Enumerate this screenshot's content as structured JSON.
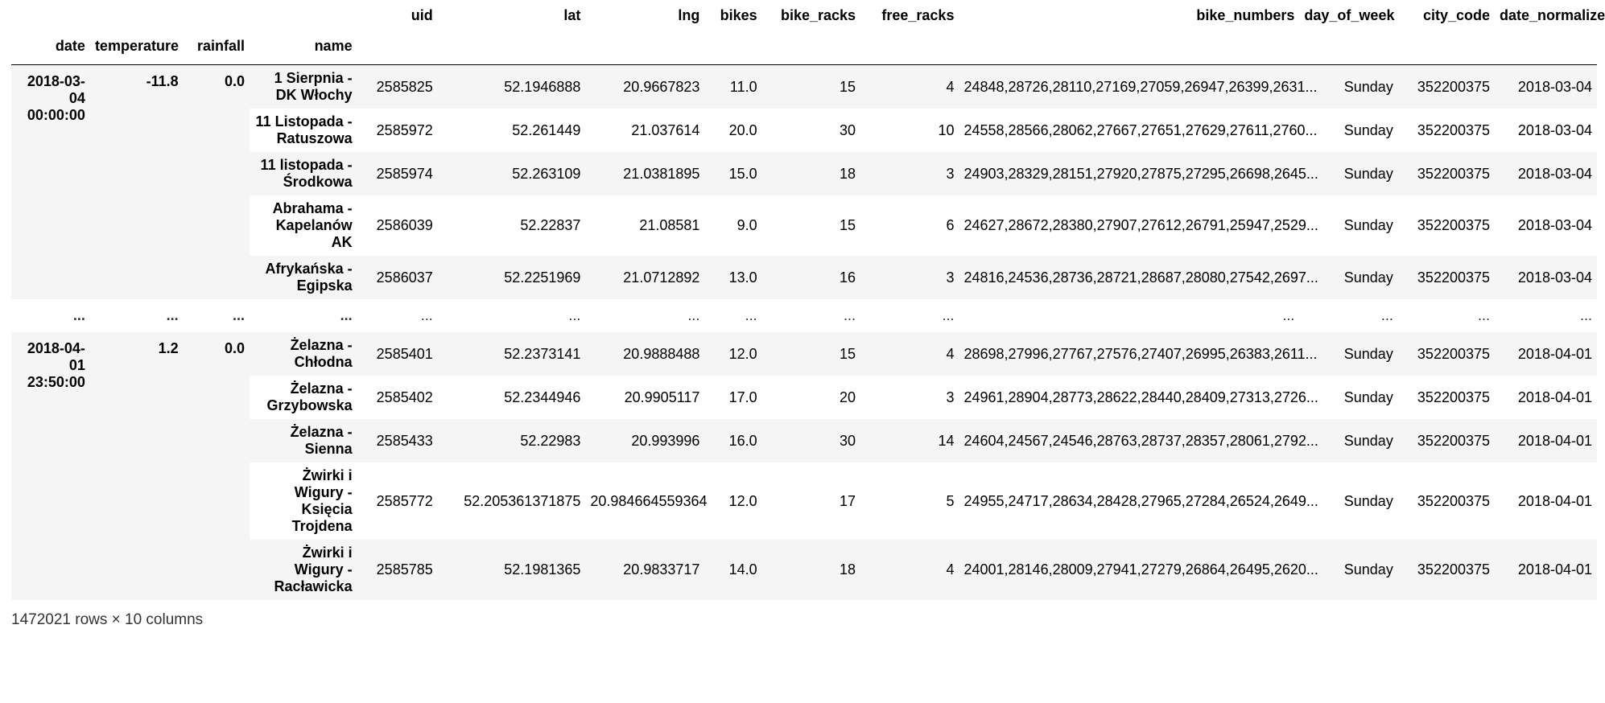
{
  "table": {
    "columns": [
      "uid",
      "lat",
      "lng",
      "bikes",
      "bike_racks",
      "free_racks",
      "bike_numbers",
      "day_of_week",
      "city_code",
      "date_normalize"
    ],
    "index_names": [
      "date",
      "temperature",
      "rainfall",
      "name"
    ],
    "groups": [
      {
        "date": "2018-03-04 00:00:00",
        "temperature": "-11.8",
        "rainfall": "0.0",
        "rows": [
          {
            "name": "1 Sierpnia - DK Włochy",
            "uid": "2585825",
            "lat": "52.1946888",
            "lng": "20.9667823",
            "bikes": "11.0",
            "bike_racks": "15",
            "free_racks": "4",
            "bike_numbers": "24848,28726,28110,27169,27059,26947,26399,2631...",
            "day_of_week": "Sunday",
            "city_code": "352200375",
            "date_normalize": "2018-03-04"
          },
          {
            "name": "11 Listopada - Ratuszowa",
            "uid": "2585972",
            "lat": "52.261449",
            "lng": "21.037614",
            "bikes": "20.0",
            "bike_racks": "30",
            "free_racks": "10",
            "bike_numbers": "24558,28566,28062,27667,27651,27629,27611,2760...",
            "day_of_week": "Sunday",
            "city_code": "352200375",
            "date_normalize": "2018-03-04"
          },
          {
            "name": "11 listopada - Środkowa",
            "uid": "2585974",
            "lat": "52.263109",
            "lng": "21.0381895",
            "bikes": "15.0",
            "bike_racks": "18",
            "free_racks": "3",
            "bike_numbers": "24903,28329,28151,27920,27875,27295,26698,2645...",
            "day_of_week": "Sunday",
            "city_code": "352200375",
            "date_normalize": "2018-03-04"
          },
          {
            "name": "Abrahama - Kapelanów AK",
            "uid": "2586039",
            "lat": "52.22837",
            "lng": "21.08581",
            "bikes": "9.0",
            "bike_racks": "15",
            "free_racks": "6",
            "bike_numbers": "24627,28672,28380,27907,27612,26791,25947,2529...",
            "day_of_week": "Sunday",
            "city_code": "352200375",
            "date_normalize": "2018-03-04"
          },
          {
            "name": "Afrykańska - Egipska",
            "uid": "2586037",
            "lat": "52.2251969",
            "lng": "21.0712892",
            "bikes": "13.0",
            "bike_racks": "16",
            "free_racks": "3",
            "bike_numbers": "24816,24536,28736,28721,28687,28080,27542,2697...",
            "day_of_week": "Sunday",
            "city_code": "352200375",
            "date_normalize": "2018-03-04"
          }
        ]
      },
      {
        "date": "2018-04-01 23:50:00",
        "temperature": "1.2",
        "rainfall": "0.0",
        "rows": [
          {
            "name": "Żelazna - Chłodna",
            "uid": "2585401",
            "lat": "52.2373141",
            "lng": "20.9888488",
            "bikes": "12.0",
            "bike_racks": "15",
            "free_racks": "4",
            "bike_numbers": "28698,27996,27767,27576,27407,26995,26383,2611...",
            "day_of_week": "Sunday",
            "city_code": "352200375",
            "date_normalize": "2018-04-01"
          },
          {
            "name": "Żelazna - Grzybowska",
            "uid": "2585402",
            "lat": "52.2344946",
            "lng": "20.9905117",
            "bikes": "17.0",
            "bike_racks": "20",
            "free_racks": "3",
            "bike_numbers": "24961,28904,28773,28622,28440,28409,27313,2726...",
            "day_of_week": "Sunday",
            "city_code": "352200375",
            "date_normalize": "2018-04-01"
          },
          {
            "name": "Żelazna - Sienna",
            "uid": "2585433",
            "lat": "52.22983",
            "lng": "20.993996",
            "bikes": "16.0",
            "bike_racks": "30",
            "free_racks": "14",
            "bike_numbers": "24604,24567,24546,28763,28737,28357,28061,2792...",
            "day_of_week": "Sunday",
            "city_code": "352200375",
            "date_normalize": "2018-04-01"
          },
          {
            "name": "Żwirki i Wigury - Księcia Trojdena",
            "uid": "2585772",
            "lat": "52.205361371875",
            "lng": "20.984664559364",
            "bikes": "12.0",
            "bike_racks": "17",
            "free_racks": "5",
            "bike_numbers": "24955,24717,28634,28428,27965,27284,26524,2649...",
            "day_of_week": "Sunday",
            "city_code": "352200375",
            "date_normalize": "2018-04-01"
          },
          {
            "name": "Żwirki i Wigury - Racławicka",
            "uid": "2585785",
            "lat": "52.1981365",
            "lng": "20.9833717",
            "bikes": "14.0",
            "bike_racks": "18",
            "free_racks": "4",
            "bike_numbers": "24001,28146,28009,27941,27279,26864,26495,2620...",
            "day_of_week": "Sunday",
            "city_code": "352200375",
            "date_normalize": "2018-04-01"
          }
        ]
      }
    ],
    "ellipsis": "...",
    "footer": "1472021 rows × 10 columns"
  }
}
